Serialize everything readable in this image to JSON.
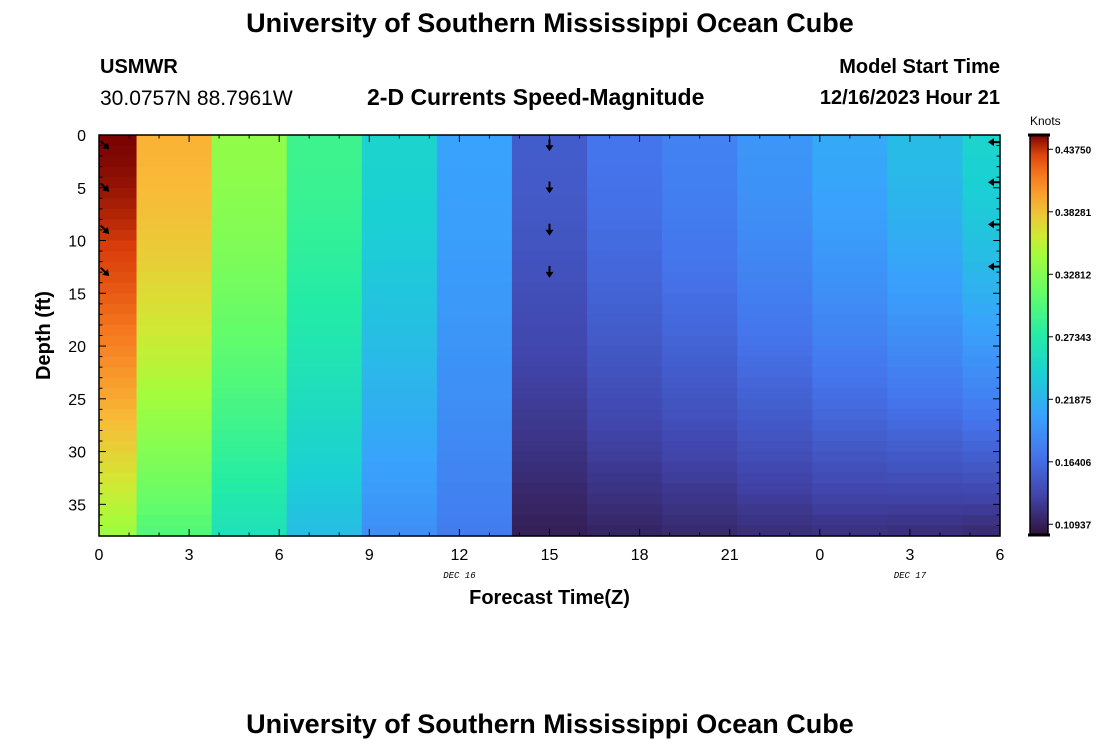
{
  "header": {
    "title": "University of Southern Mississippi Ocean Cube",
    "station_id": "USMWR",
    "station_coords": "30.0757N  88.7961W",
    "plot_subtitle": "2-D Currents Speed-Magnitude",
    "model_start_label": "Model Start Time",
    "model_start_value": "12/16/2023 Hour 21"
  },
  "footer": {
    "title": "University of Southern Mississippi Ocean Cube"
  },
  "chart_data": {
    "type": "heatmap",
    "title": "2-D Currents Speed-Magnitude",
    "xlabel": "Forecast Time(Z)",
    "ylabel": "Depth (ft)",
    "x_ticks": [
      "0",
      "3",
      "6",
      "9",
      "12",
      "15",
      "18",
      "21",
      "0",
      "3",
      "6"
    ],
    "x_range": [
      0,
      30
    ],
    "y_range": [
      0,
      38
    ],
    "y_ticks": [
      0,
      5,
      10,
      15,
      20,
      25,
      30,
      35
    ],
    "date_labels": [
      {
        "text": "DEC 16",
        "x": 12
      },
      {
        "text": "DEC 17",
        "x": 27
      }
    ],
    "colorbar": {
      "title": "Knots",
      "min": 0.1,
      "max": 0.45,
      "ticks": [
        "0.43750",
        "0.38281",
        "0.32812",
        "0.27343",
        "0.21875",
        "0.16406",
        "0.10937"
      ],
      "tick_values": [
        0.4375,
        0.38281,
        0.32812,
        0.27343,
        0.21875,
        0.16406,
        0.10937
      ]
    },
    "time_columns": [
      {
        "x_start": 0,
        "x_end": 1.25,
        "surface": 0.45,
        "bottom": 0.34
      },
      {
        "x_start": 1.25,
        "x_end": 3.75,
        "surface": 0.39,
        "bottom": 0.3
      },
      {
        "x_start": 3.75,
        "x_end": 6.25,
        "surface": 0.335,
        "bottom": 0.26
      },
      {
        "x_start": 6.25,
        "x_end": 8.75,
        "surface": 0.29,
        "bottom": 0.225
      },
      {
        "x_start": 8.75,
        "x_end": 11.25,
        "surface": 0.245,
        "bottom": 0.19
      },
      {
        "x_start": 11.25,
        "x_end": 13.75,
        "surface": 0.205,
        "bottom": 0.175
      },
      {
        "x_start": 13.75,
        "x_end": 16.25,
        "surface": 0.152,
        "bottom": 0.108
      },
      {
        "x_start": 16.25,
        "x_end": 18.75,
        "surface": 0.17,
        "bottom": 0.112
      },
      {
        "x_start": 18.75,
        "x_end": 21.25,
        "surface": 0.18,
        "bottom": 0.115
      },
      {
        "x_start": 21.25,
        "x_end": 23.75,
        "surface": 0.195,
        "bottom": 0.118
      },
      {
        "x_start": 23.75,
        "x_end": 26.25,
        "surface": 0.21,
        "bottom": 0.12
      },
      {
        "x_start": 26.25,
        "x_end": 28.75,
        "surface": 0.225,
        "bottom": 0.118
      },
      {
        "x_start": 28.75,
        "x_end": 30,
        "surface": 0.245,
        "bottom": 0.115
      }
    ],
    "vectors": [
      {
        "x": 0.2,
        "depth": 0.5,
        "dir": "se"
      },
      {
        "x": 0.2,
        "depth": 4.5,
        "dir": "se"
      },
      {
        "x": 0.2,
        "depth": 8.5,
        "dir": "se"
      },
      {
        "x": 0.2,
        "depth": 12.5,
        "dir": "se"
      },
      {
        "x": 15,
        "depth": 0.5,
        "dir": "s"
      },
      {
        "x": 15,
        "depth": 4.5,
        "dir": "s"
      },
      {
        "x": 15,
        "depth": 8.5,
        "dir": "s"
      },
      {
        "x": 15,
        "depth": 12.5,
        "dir": "s"
      },
      {
        "x": 29.8,
        "depth": 0.2,
        "dir": "w"
      },
      {
        "x": 29.8,
        "depth": 4.0,
        "dir": "w"
      },
      {
        "x": 29.8,
        "depth": 8.0,
        "dir": "w"
      },
      {
        "x": 29.8,
        "depth": 12.0,
        "dir": "w"
      }
    ]
  }
}
